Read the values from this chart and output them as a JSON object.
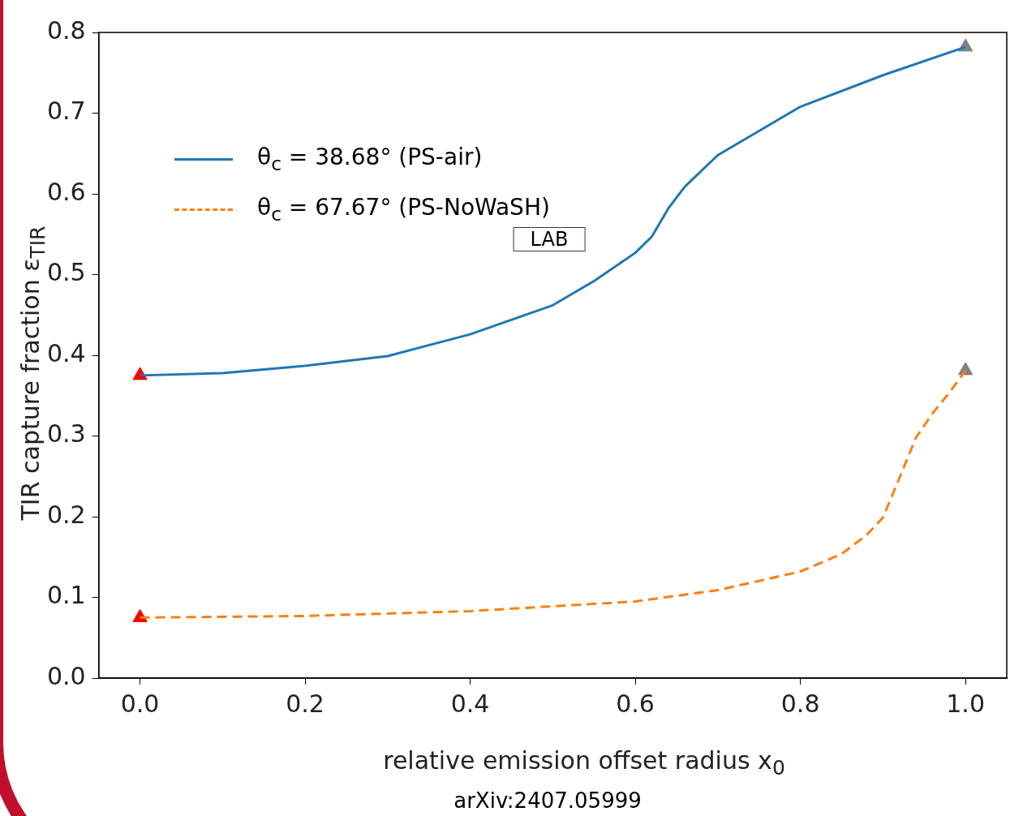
{
  "chart_data": {
    "type": "line",
    "xlabel": "relative emission offset radius x$_{0}$",
    "ylabel": "TIR capture fraction ε$_{TIR}$",
    "xlim": [
      -0.05,
      1.05
    ],
    "xticks": [
      {
        "value": 0,
        "label": "0.0"
      },
      0.2,
      0.4,
      0.6,
      0.8,
      {
        "value": 1,
        "label": "1.0"
      }
    ],
    "ylim": [
      0,
      0.8
    ],
    "yticks": [
      {
        "value": 0,
        "label": "0.0"
      },
      0.1,
      0.2,
      0.3,
      0.4,
      0.5,
      0.6,
      0.7,
      0.8
    ],
    "grid": false,
    "legend": "top left",
    "series": [
      {
        "name": "θ$_{c}$ = 38.68° (PS-air)",
        "color": "#1f77b4",
        "line_style": "solid",
        "x": [
          0,
          0.1,
          0.2,
          0.3,
          0.4,
          0.5,
          0.55,
          0.6,
          0.62,
          0.64,
          0.66,
          0.7,
          0.8,
          0.9,
          1.0
        ],
        "values": [
          0.375,
          0.378,
          0.387,
          0.399,
          0.426,
          0.462,
          0.492,
          0.527,
          0.547,
          0.582,
          0.609,
          0.648,
          0.708,
          0.747,
          0.782
        ]
      },
      {
        "name": "θ$_{c}$ = 67.67° (PS-NoWaSH)",
        "color": "#ff7f0e",
        "line_style": "dashed",
        "x": [
          0,
          0.2,
          0.4,
          0.6,
          0.7,
          0.8,
          0.85,
          0.88,
          0.9,
          0.92,
          0.94,
          0.96,
          0.98,
          1.0
        ],
        "values": [
          0.075,
          0.077,
          0.083,
          0.095,
          0.109,
          0.132,
          0.154,
          0.177,
          0.199,
          0.248,
          0.298,
          0.328,
          0.353,
          0.381
        ]
      },
      {
        "type": "scatter",
        "marker": "triangle",
        "color": "#ff0000",
        "x": [
          0,
          0
        ],
        "values": [
          0.375,
          0.075
        ]
      },
      {
        "type": "scatter",
        "marker": "triangle",
        "color": "#808080",
        "x": [
          1,
          1
        ],
        "values": [
          0.782,
          0.381
        ]
      }
    ],
    "annotations": [
      "LAB",
      "arXiv:2407.05999"
    ]
  }
}
